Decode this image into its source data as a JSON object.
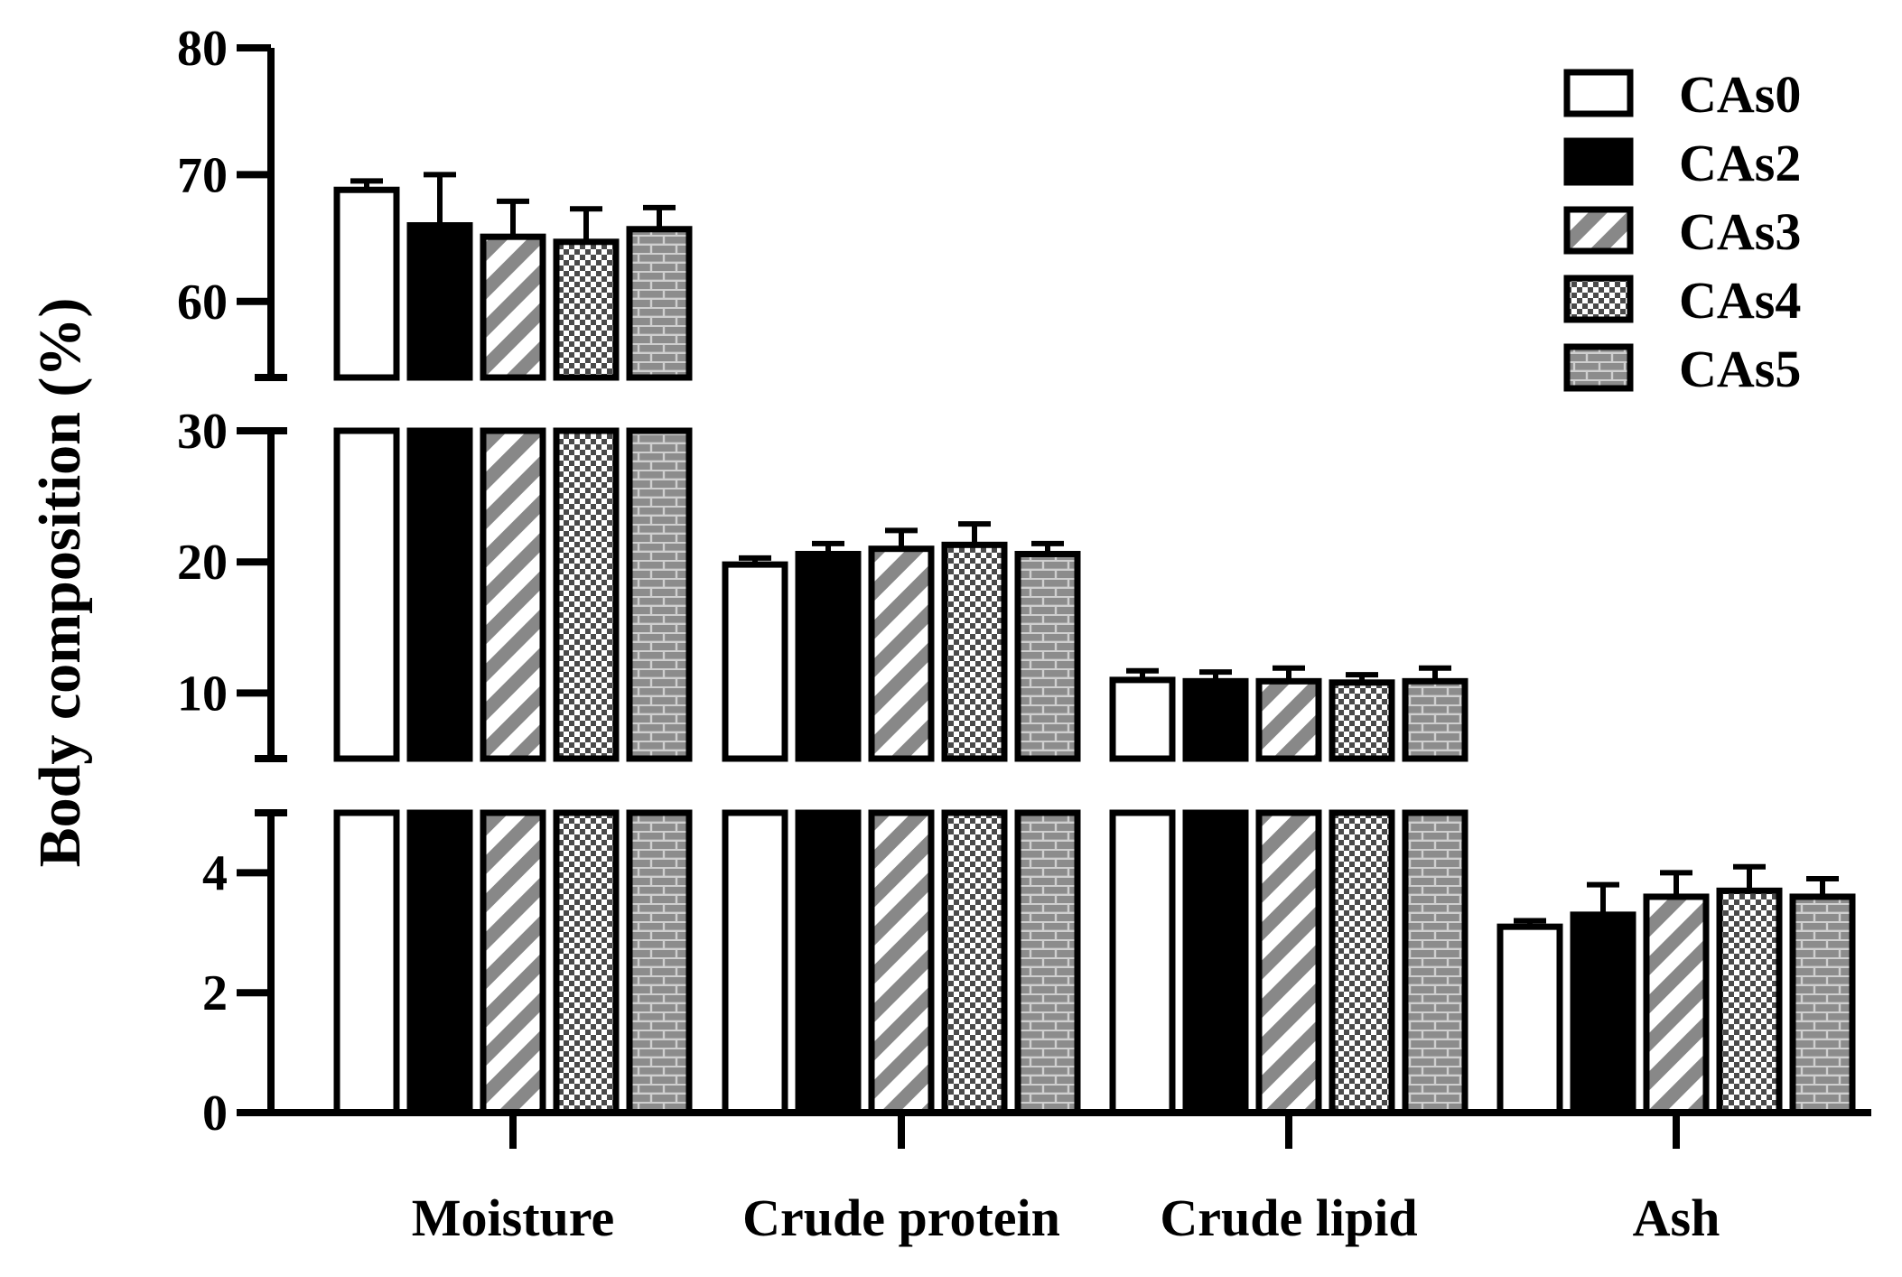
{
  "chart_data": {
    "type": "bar",
    "ylabel": "Body composition (%)",
    "xlabel": "",
    "categories": [
      "Moisture",
      "Crude protein",
      "Crude lipid",
      "Ash"
    ],
    "axis_segments": [
      {
        "range": [
          0,
          5
        ],
        "ticks": [
          "0",
          "2",
          "4"
        ]
      },
      {
        "range": [
          5,
          30
        ],
        "ticks": [
          "10",
          "20",
          "30"
        ]
      },
      {
        "range": [
          54,
          80
        ],
        "ticks": [
          "60",
          "70",
          "80"
        ]
      }
    ],
    "legend_position": "top-right",
    "series": [
      {
        "name": "CAs0",
        "pattern": "open",
        "values": [
          68.8,
          19.8,
          11.0,
          3.1
        ],
        "errors": [
          0.7,
          0.5,
          0.7,
          0.1
        ]
      },
      {
        "name": "CAs2",
        "pattern": "solid",
        "values": [
          66.0,
          20.6,
          10.9,
          3.3
        ],
        "errors": [
          4.0,
          0.8,
          0.7,
          0.5
        ]
      },
      {
        "name": "CAs3",
        "pattern": "diagonal",
        "values": [
          65.1,
          21.0,
          10.9,
          3.6
        ],
        "errors": [
          2.8,
          1.4,
          1.0,
          0.4
        ]
      },
      {
        "name": "CAs4",
        "pattern": "checker",
        "values": [
          64.7,
          21.3,
          10.8,
          3.7
        ],
        "errors": [
          2.6,
          1.6,
          0.6,
          0.4
        ]
      },
      {
        "name": "CAs5",
        "pattern": "brick",
        "values": [
          65.7,
          20.6,
          10.9,
          3.6
        ],
        "errors": [
          1.7,
          0.8,
          1.0,
          0.3
        ]
      }
    ],
    "colors": {
      "bar_edge": "#000000",
      "stripe": "#888888",
      "checker": "#4a4a4a",
      "brick_fill": "#8c8c8c",
      "brick_line": "#cfcfcf"
    }
  }
}
